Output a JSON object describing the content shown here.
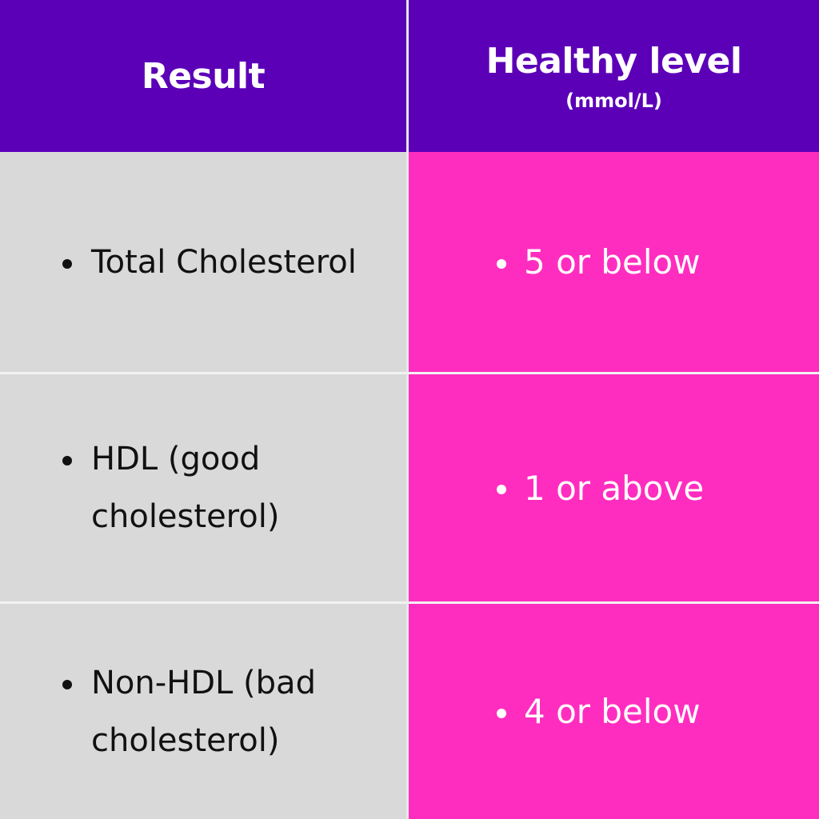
{
  "header": {
    "col1": "Result",
    "col2": "Healthy level",
    "col2_sub": "(mmol/L)"
  },
  "rows": [
    {
      "result": "Total Cholesterol",
      "level": "5 or below"
    },
    {
      "result": "HDL (good cholesterol)",
      "level": "1 or above"
    },
    {
      "result": "Non-HDL (bad cholesterol)",
      "level": "4 or below"
    }
  ],
  "colors": {
    "header_bg": "#5c00b8",
    "left_bg": "#d9d9d9",
    "right_bg": "#ff2dbf"
  }
}
